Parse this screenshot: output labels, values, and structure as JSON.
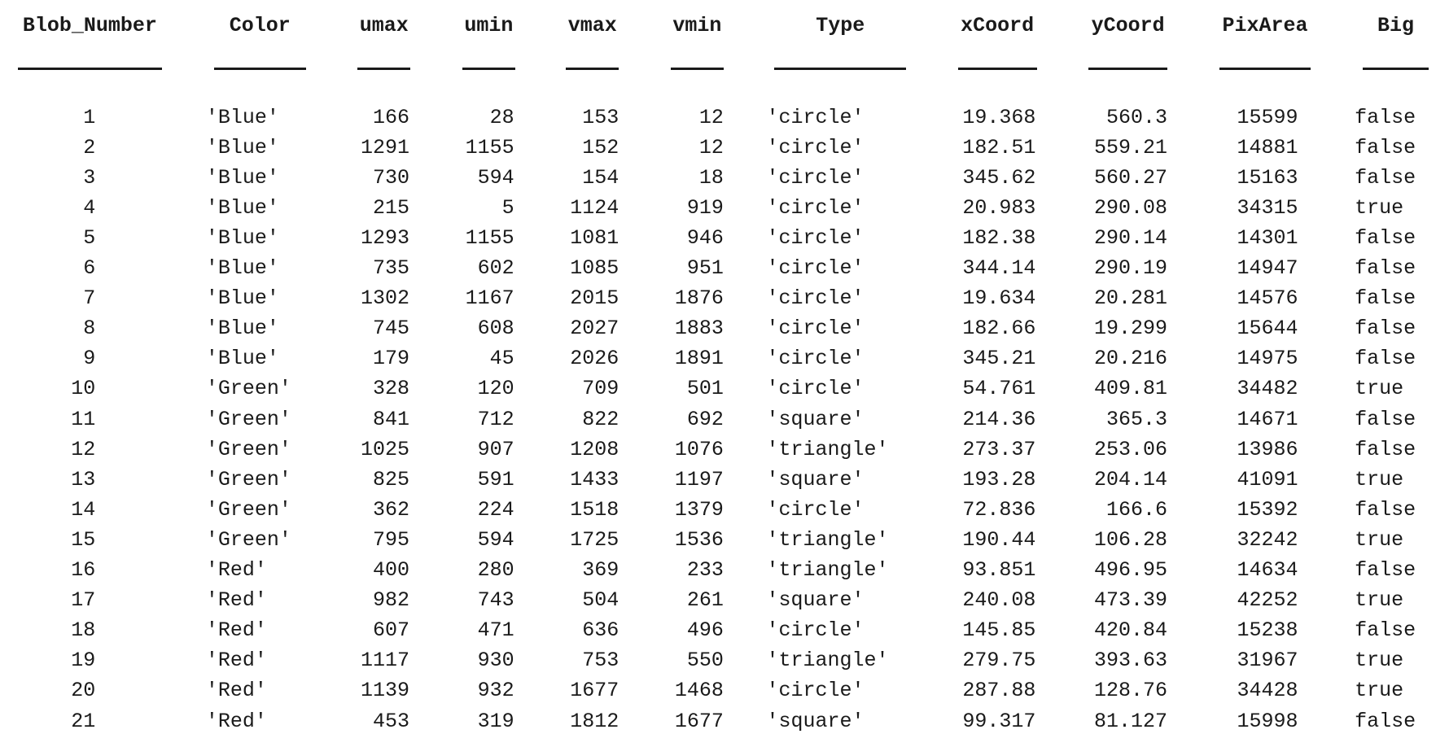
{
  "table": {
    "columns": [
      "Blob_Number",
      "Color",
      "umax",
      "umin",
      "vmax",
      "vmin",
      "Type",
      "xCoord",
      "yCoord",
      "PixArea",
      "Big"
    ],
    "rows": [
      [
        "1",
        "'Blue'",
        "166",
        "28",
        "153",
        "12",
        "'circle'",
        "19.368",
        "560.3",
        "15599",
        "false"
      ],
      [
        "2",
        "'Blue'",
        "1291",
        "1155",
        "152",
        "12",
        "'circle'",
        "182.51",
        "559.21",
        "14881",
        "false"
      ],
      [
        "3",
        "'Blue'",
        "730",
        "594",
        "154",
        "18",
        "'circle'",
        "345.62",
        "560.27",
        "15163",
        "false"
      ],
      [
        "4",
        "'Blue'",
        "215",
        "5",
        "1124",
        "919",
        "'circle'",
        "20.983",
        "290.08",
        "34315",
        "true"
      ],
      [
        "5",
        "'Blue'",
        "1293",
        "1155",
        "1081",
        "946",
        "'circle'",
        "182.38",
        "290.14",
        "14301",
        "false"
      ],
      [
        "6",
        "'Blue'",
        "735",
        "602",
        "1085",
        "951",
        "'circle'",
        "344.14",
        "290.19",
        "14947",
        "false"
      ],
      [
        "7",
        "'Blue'",
        "1302",
        "1167",
        "2015",
        "1876",
        "'circle'",
        "19.634",
        "20.281",
        "14576",
        "false"
      ],
      [
        "8",
        "'Blue'",
        "745",
        "608",
        "2027",
        "1883",
        "'circle'",
        "182.66",
        "19.299",
        "15644",
        "false"
      ],
      [
        "9",
        "'Blue'",
        "179",
        "45",
        "2026",
        "1891",
        "'circle'",
        "345.21",
        "20.216",
        "14975",
        "false"
      ],
      [
        "10",
        "'Green'",
        "328",
        "120",
        "709",
        "501",
        "'circle'",
        "54.761",
        "409.81",
        "34482",
        "true"
      ],
      [
        "11",
        "'Green'",
        "841",
        "712",
        "822",
        "692",
        "'square'",
        "214.36",
        "365.3",
        "14671",
        "false"
      ],
      [
        "12",
        "'Green'",
        "1025",
        "907",
        "1208",
        "1076",
        "'triangle'",
        "273.37",
        "253.06",
        "13986",
        "false"
      ],
      [
        "13",
        "'Green'",
        "825",
        "591",
        "1433",
        "1197",
        "'square'",
        "193.28",
        "204.14",
        "41091",
        "true"
      ],
      [
        "14",
        "'Green'",
        "362",
        "224",
        "1518",
        "1379",
        "'circle'",
        "72.836",
        "166.6",
        "15392",
        "false"
      ],
      [
        "15",
        "'Green'",
        "795",
        "594",
        "1725",
        "1536",
        "'triangle'",
        "190.44",
        "106.28",
        "32242",
        "true"
      ],
      [
        "16",
        "'Red'",
        "400",
        "280",
        "369",
        "233",
        "'triangle'",
        "93.851",
        "496.95",
        "14634",
        "false"
      ],
      [
        "17",
        "'Red'",
        "982",
        "743",
        "504",
        "261",
        "'square'",
        "240.08",
        "473.39",
        "42252",
        "true"
      ],
      [
        "18",
        "'Red'",
        "607",
        "471",
        "636",
        "496",
        "'circle'",
        "145.85",
        "420.84",
        "15238",
        "false"
      ],
      [
        "19",
        "'Red'",
        "1117",
        "930",
        "753",
        "550",
        "'triangle'",
        "279.75",
        "393.63",
        "31967",
        "true"
      ],
      [
        "20",
        "'Red'",
        "1139",
        "932",
        "1677",
        "1468",
        "'circle'",
        "287.88",
        "128.76",
        "34428",
        "true"
      ],
      [
        "21",
        "'Red'",
        "453",
        "319",
        "1812",
        "1677",
        "'square'",
        "99.317",
        "81.127",
        "15998",
        "false"
      ]
    ]
  }
}
